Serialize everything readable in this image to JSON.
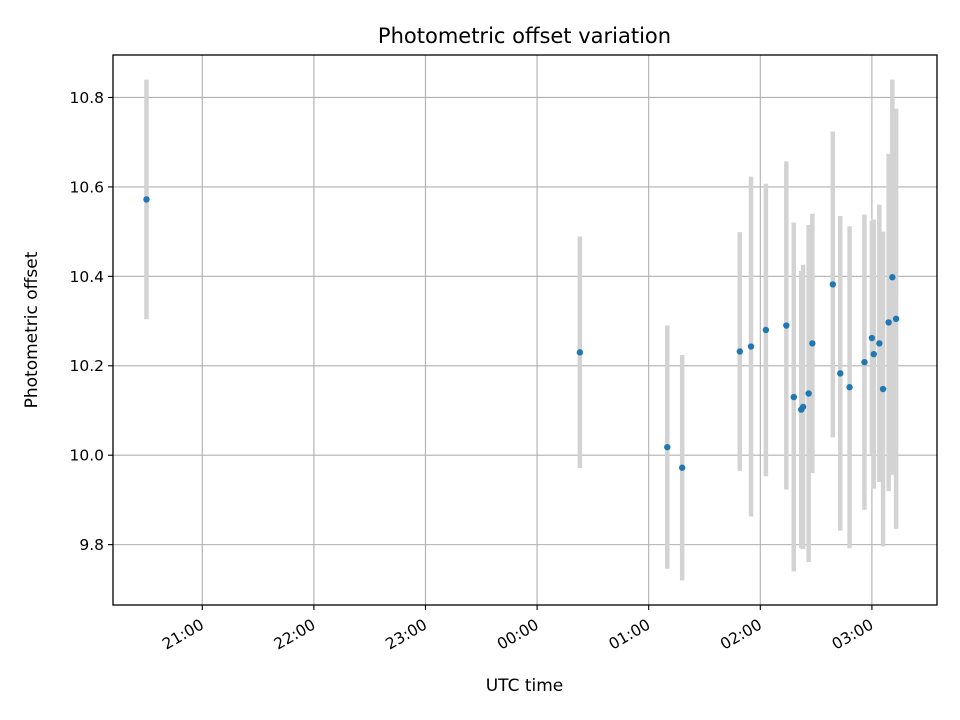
{
  "chart_data": {
    "type": "scatter",
    "title": "Photometric offset variation",
    "xlabel": "UTC time",
    "ylabel": "Photometric offset",
    "x_unit": "UTC",
    "xlim": [
      "20:12",
      "03:35"
    ],
    "ylim": [
      9.665,
      10.895
    ],
    "grid": true,
    "legend": "none",
    "x_ticks": [
      "21:00",
      "22:00",
      "23:00",
      "00:00",
      "01:00",
      "02:00",
      "03:00"
    ],
    "y_ticks": [
      "9.8",
      "10.0",
      "10.2",
      "10.4",
      "10.6",
      "10.8"
    ],
    "y_tick_values": [
      9.8,
      10.0,
      10.2,
      10.4,
      10.6,
      10.8
    ],
    "colors": {
      "point": "#1f77b4",
      "errorbar": "#d3d3d3",
      "grid": "#b0b0b0"
    },
    "points": [
      {
        "x": "20:30",
        "y": 10.572,
        "yerr": 0.268
      },
      {
        "x": "00:23",
        "y": 10.23,
        "yerr": 0.259
      },
      {
        "x": "01:10",
        "y": 10.018,
        "yerr": 0.272
      },
      {
        "x": "01:18",
        "y": 9.972,
        "yerr": 0.252
      },
      {
        "x": "01:49",
        "y": 10.232,
        "yerr": 0.267
      },
      {
        "x": "01:55",
        "y": 10.243,
        "yerr": 0.38
      },
      {
        "x": "02:03",
        "y": 10.28,
        "yerr": 0.327
      },
      {
        "x": "02:14",
        "y": 10.29,
        "yerr": 0.367
      },
      {
        "x": "02:18",
        "y": 10.13,
        "yerr": 0.39
      },
      {
        "x": "02:22",
        "y": 10.102,
        "yerr": 0.31
      },
      {
        "x": "02:23",
        "y": 10.108,
        "yerr": 0.318
      },
      {
        "x": "02:26",
        "y": 10.138,
        "yerr": 0.377
      },
      {
        "x": "02:28",
        "y": 10.25,
        "yerr": 0.29
      },
      {
        "x": "02:39",
        "y": 10.382,
        "yerr": 0.342
      },
      {
        "x": "02:43",
        "y": 10.183,
        "yerr": 0.352
      },
      {
        "x": "02:48",
        "y": 10.152,
        "yerr": 0.36
      },
      {
        "x": "02:56",
        "y": 10.208,
        "yerr": 0.33
      },
      {
        "x": "03:00",
        "y": 10.262,
        "yerr": 0.262
      },
      {
        "x": "03:01",
        "y": 10.226,
        "yerr": 0.301
      },
      {
        "x": "03:04",
        "y": 10.25,
        "yerr": 0.31
      },
      {
        "x": "03:06",
        "y": 10.148,
        "yerr": 0.352
      },
      {
        "x": "03:09",
        "y": 10.297,
        "yerr": 0.377
      },
      {
        "x": "03:11",
        "y": 10.398,
        "yerr": 0.442
      },
      {
        "x": "03:13",
        "y": 10.305,
        "yerr": 0.47
      }
    ]
  }
}
